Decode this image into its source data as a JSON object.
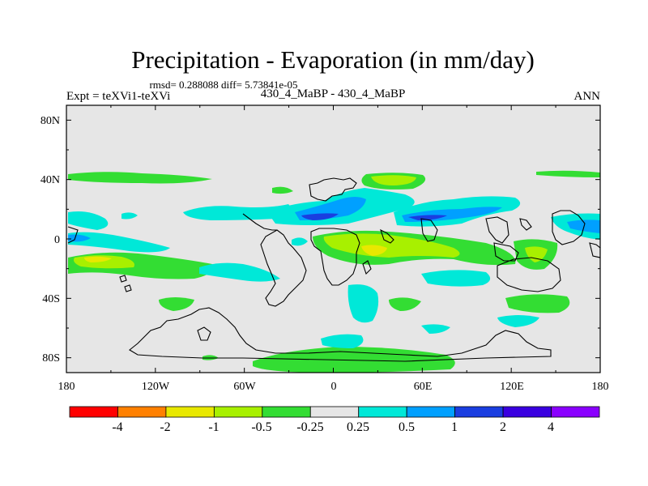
{
  "chart_data": {
    "type": "heatmap",
    "title": "Precipitation - Evaporation (in mm/day)",
    "stats_line": "rmsd= 0.288088 diff= 5.73841e-05",
    "left_label": "Expt = teXVi1-teXVi",
    "center_label": "430_4_MaBP - 430_4_MaBP",
    "right_label": "ANN",
    "x_ticks": [
      "180",
      "120W",
      "60W",
      "0",
      "60E",
      "120E",
      "180"
    ],
    "y_ticks": [
      "80N",
      "40N",
      "0",
      "40S",
      "80S"
    ],
    "xlim": [
      -180,
      180
    ],
    "ylim": [
      -90,
      90
    ],
    "colorbar": {
      "labels": [
        "-4",
        "-2",
        "-1",
        "-0.5",
        "-0.25",
        "0.25",
        "0.5",
        "1",
        "2",
        "4"
      ],
      "colors": [
        "#ff0000",
        "#ff8000",
        "#e8e800",
        "#a8f000",
        "#33dd33",
        "#e6e6e6",
        "#00e8d8",
        "#00a0ff",
        "#1a3ee0",
        "#3a00e0",
        "#8a00ff"
      ]
    },
    "palette": {
      "background": "#e6e6e6",
      "n025_05": "#00e8d8",
      "n05_1": "#00a0ff",
      "n1_2": "#1a3ee0",
      "p025_05": "#33dd33",
      "p05_1": "#a8f000",
      "p1_2": "#e8e800",
      "coast": "#000000"
    }
  }
}
